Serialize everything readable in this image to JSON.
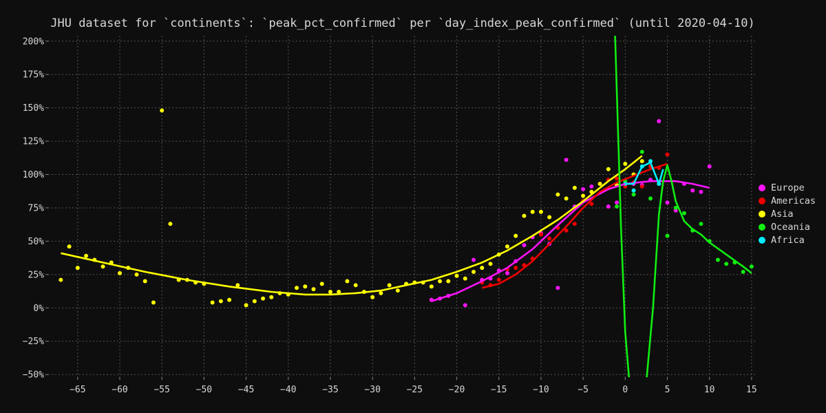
{
  "chart_data": {
    "type": "scatter",
    "title": "JHU dataset for `continents`: `peak_pct_confirmed` per `day_index_peak_confirmed` (until 2020-04-10)",
    "xlabel": "",
    "ylabel": "",
    "xlim": [
      -68.5,
      15.5
    ],
    "ylim": [
      -52,
      204
    ],
    "x_ticks": [
      -65,
      -60,
      -55,
      -50,
      -45,
      -40,
      -35,
      -30,
      -25,
      -20,
      -15,
      -10,
      -5,
      0,
      5,
      10,
      15
    ],
    "y_ticks": [
      -50,
      -25,
      0,
      25,
      50,
      75,
      100,
      125,
      150,
      175,
      200
    ],
    "y_tick_format": "percent",
    "grid": true,
    "legend_position": "right",
    "series": [
      {
        "name": "Europe",
        "color": "#ff14ff",
        "points": [
          [
            -23,
            6
          ],
          [
            -22,
            7
          ],
          [
            -21,
            9
          ],
          [
            -19,
            2
          ],
          [
            -18,
            36
          ],
          [
            -17,
            21
          ],
          [
            -16,
            22
          ],
          [
            -15,
            28
          ],
          [
            -14,
            26
          ],
          [
            -13,
            35
          ],
          [
            -12,
            47
          ],
          [
            -11,
            53
          ],
          [
            -10,
            56
          ],
          [
            -9,
            48
          ],
          [
            -8,
            15
          ],
          [
            -7,
            111
          ],
          [
            -6,
            76
          ],
          [
            -5,
            89
          ],
          [
            -4,
            91
          ],
          [
            -2,
            76
          ],
          [
            -1,
            79
          ],
          [
            1,
            93
          ],
          [
            2,
            92
          ],
          [
            3,
            96
          ],
          [
            4,
            140
          ],
          [
            5,
            79
          ],
          [
            6,
            73
          ],
          [
            7,
            93
          ],
          [
            8,
            88
          ],
          [
            9,
            87
          ],
          [
            10,
            106
          ]
        ],
        "trend": [
          [
            -23,
            5
          ],
          [
            -20,
            11
          ],
          [
            -17,
            20
          ],
          [
            -14,
            30
          ],
          [
            -11,
            44
          ],
          [
            -8,
            62
          ],
          [
            -5,
            79
          ],
          [
            -2,
            89
          ],
          [
            0,
            93
          ],
          [
            3,
            95
          ],
          [
            6,
            95
          ],
          [
            8,
            93
          ],
          [
            10,
            90
          ]
        ]
      },
      {
        "name": "Americas",
        "color": "#ee0000",
        "points": [
          [
            -17,
            19
          ],
          [
            -16,
            17
          ],
          [
            -15,
            21
          ],
          [
            -14,
            29
          ],
          [
            -13,
            30
          ],
          [
            -12,
            32
          ],
          [
            -11,
            37
          ],
          [
            -10,
            55
          ],
          [
            -9,
            52
          ],
          [
            -8,
            60
          ],
          [
            -7,
            58
          ],
          [
            -6,
            63
          ],
          [
            -5,
            80
          ],
          [
            -4,
            78
          ],
          [
            -3,
            93
          ],
          [
            -2,
            96
          ],
          [
            -1,
            97
          ],
          [
            0,
            91
          ],
          [
            1,
            94
          ],
          [
            2,
            91
          ],
          [
            3,
            106
          ],
          [
            4,
            105
          ],
          [
            5,
            115
          ]
        ],
        "trend": [
          [
            -17,
            15
          ],
          [
            -15,
            18
          ],
          [
            -13,
            25
          ],
          [
            -11,
            35
          ],
          [
            -9,
            48
          ],
          [
            -7,
            61
          ],
          [
            -5,
            75
          ],
          [
            -3,
            87
          ],
          [
            -1,
            94
          ],
          [
            1,
            99
          ],
          [
            3,
            104
          ],
          [
            5,
            108
          ]
        ]
      },
      {
        "name": "Asia",
        "color": "#ffff00",
        "points": [
          [
            -67,
            21
          ],
          [
            -66,
            46
          ],
          [
            -65,
            30
          ],
          [
            -64,
            39
          ],
          [
            -63,
            36
          ],
          [
            -62,
            31
          ],
          [
            -61,
            34
          ],
          [
            -60,
            26
          ],
          [
            -59,
            30
          ],
          [
            -58,
            25
          ],
          [
            -57,
            20
          ],
          [
            -56,
            4
          ],
          [
            -55,
            148
          ],
          [
            -54,
            63
          ],
          [
            -53,
            21
          ],
          [
            -52,
            21
          ],
          [
            -51,
            19
          ],
          [
            -50,
            18
          ],
          [
            -49,
            4
          ],
          [
            -48,
            5
          ],
          [
            -47,
            6
          ],
          [
            -46,
            17
          ],
          [
            -45,
            2
          ],
          [
            -44,
            5
          ],
          [
            -43,
            7
          ],
          [
            -42,
            8
          ],
          [
            -41,
            11
          ],
          [
            -40,
            10
          ],
          [
            -39,
            15
          ],
          [
            -38,
            16
          ],
          [
            -37,
            14
          ],
          [
            -36,
            18
          ],
          [
            -35,
            12
          ],
          [
            -34,
            12
          ],
          [
            -33,
            20
          ],
          [
            -32,
            17
          ],
          [
            -31,
            12
          ],
          [
            -30,
            8
          ],
          [
            -29,
            11
          ],
          [
            -28,
            17
          ],
          [
            -27,
            13
          ],
          [
            -26,
            18
          ],
          [
            -25,
            19
          ],
          [
            -24,
            19
          ],
          [
            -23,
            16
          ],
          [
            -22,
            20
          ],
          [
            -21,
            20
          ],
          [
            -20,
            24
          ],
          [
            -19,
            22
          ],
          [
            -18,
            27
          ],
          [
            -17,
            30
          ],
          [
            -16,
            33
          ],
          [
            -15,
            40
          ],
          [
            -14,
            46
          ],
          [
            -13,
            54
          ],
          [
            -12,
            69
          ],
          [
            -11,
            72
          ],
          [
            -10,
            72
          ],
          [
            -9,
            68
          ],
          [
            -8,
            85
          ],
          [
            -7,
            82
          ],
          [
            -6,
            90
          ],
          [
            -5,
            84
          ],
          [
            -4,
            87
          ],
          [
            -3,
            93
          ],
          [
            -2,
            104
          ],
          [
            -1,
            92
          ],
          [
            0,
            108
          ],
          [
            1,
            100
          ],
          [
            2,
            110
          ]
        ],
        "trend": [
          [
            -67,
            41
          ],
          [
            -62,
            34
          ],
          [
            -57,
            27
          ],
          [
            -52,
            21
          ],
          [
            -47,
            16
          ],
          [
            -42,
            12
          ],
          [
            -38,
            10
          ],
          [
            -35,
            10
          ],
          [
            -32,
            11
          ],
          [
            -29,
            13
          ],
          [
            -26,
            17
          ],
          [
            -23,
            21
          ],
          [
            -20,
            27
          ],
          [
            -17,
            34
          ],
          [
            -14,
            43
          ],
          [
            -11,
            54
          ],
          [
            -8,
            66
          ],
          [
            -5,
            80
          ],
          [
            -2,
            95
          ],
          [
            0,
            104
          ],
          [
            2,
            114
          ]
        ]
      },
      {
        "name": "Oceania",
        "color": "#11ee11",
        "points": [
          [
            -1,
            76
          ],
          [
            0,
            95
          ],
          [
            1,
            85
          ],
          [
            2,
            117
          ],
          [
            3,
            82
          ],
          [
            4,
            93
          ],
          [
            5,
            54
          ],
          [
            6,
            75
          ],
          [
            7,
            71
          ],
          [
            8,
            58
          ],
          [
            9,
            63
          ],
          [
            10,
            50
          ],
          [
            11,
            36
          ],
          [
            12,
            33
          ],
          [
            13,
            34
          ],
          [
            14,
            27
          ],
          [
            15,
            31
          ]
        ],
        "trend": [
          [
            -1.2,
            204
          ],
          [
            -0.5,
            60
          ],
          [
            0,
            -18
          ],
          [
            0.5,
            -56
          ],
          [
            2.5,
            -56
          ],
          [
            3.3,
            0
          ],
          [
            4,
            70
          ],
          [
            4.5,
            95
          ],
          [
            5,
            107
          ],
          [
            5.5,
            95
          ],
          [
            6,
            80
          ],
          [
            7,
            65
          ],
          [
            8,
            59
          ],
          [
            9,
            55
          ],
          [
            10,
            49
          ],
          [
            12,
            40
          ],
          [
            14,
            31
          ],
          [
            15,
            26
          ]
        ]
      },
      {
        "name": "Africa",
        "color": "#00eeff",
        "points": [
          [
            0,
            93
          ],
          [
            1,
            88
          ],
          [
            2,
            106
          ],
          [
            3,
            110
          ],
          [
            4,
            93
          ]
        ],
        "trend": [
          [
            0,
            93
          ],
          [
            1,
            93
          ],
          [
            2,
            106
          ],
          [
            3,
            109
          ],
          [
            4,
            93
          ],
          [
            4.5,
            104
          ]
        ]
      }
    ]
  }
}
